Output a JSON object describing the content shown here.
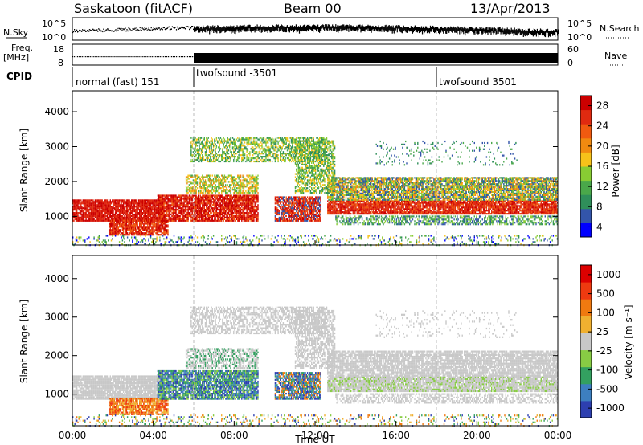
{
  "header": {
    "station": "Saskatoon (fitACF)",
    "beam": "Beam 00",
    "date": "13/Apr/2013"
  },
  "params": {
    "nsky_label": "N.Sky",
    "nsearch_label": "N.Search",
    "nsky_ticks": [
      "10^5",
      "10^0"
    ],
    "nsearch_ticks": [
      "10^5",
      "10^0"
    ],
    "freq_label": "Freq.",
    "freq_unit": "[MHz]",
    "freq_ticks": [
      "18",
      "8"
    ],
    "nave_label": "Nave",
    "nave_ticks": [
      "60",
      "0"
    ],
    "cpid_label": "CPID",
    "cpid_segments": [
      {
        "label": "normal (fast) 151",
        "start_hour": 0
      },
      {
        "label": "twofsound -3501",
        "start_hour": 6
      },
      {
        "label": "twofsound 3501",
        "start_hour": 18
      }
    ]
  },
  "chart_data": [
    {
      "type": "heatmap",
      "title": "",
      "xlabel": "",
      "ylabel": "Slant Range [km]",
      "xlim": [
        0,
        24
      ],
      "ylim": [
        180,
        4600
      ],
      "yticks": [
        1000,
        2000,
        3000,
        4000
      ],
      "colorbar": {
        "label": "Power [dB]",
        "ticks": [
          "28",
          "24",
          "20",
          "16",
          "12",
          "8",
          "4"
        ],
        "colors": [
          "#0000ff",
          "#3355aa",
          "#2f8f5a",
          "#4aa84a",
          "#88cc33",
          "#f6c21a",
          "#f08a10",
          "#f05a10",
          "#e02a10",
          "#cc0000"
        ]
      }
    },
    {
      "type": "heatmap",
      "title": "",
      "xlabel": "Time UT",
      "ylabel": "Slant Range [km]",
      "xlim": [
        0,
        24
      ],
      "ylim": [
        180,
        4600
      ],
      "yticks": [
        1000,
        2000,
        3000,
        4000
      ],
      "xticks": [
        "00:00",
        "04:00",
        "08:00",
        "12:00",
        "16:00",
        "20:00",
        "00:00"
      ],
      "colorbar": {
        "label": "Velocity [m s⁻¹]",
        "ticks": [
          "1000",
          "500",
          "100",
          "25",
          "-25",
          "-100",
          "-500",
          "-1000"
        ],
        "colors": [
          "#2d3fb0",
          "#3d7fc0",
          "#33a060",
          "#88cc44",
          "#c8c8c8",
          "#f0b030",
          "#f07a10",
          "#ee3a10",
          "#dd0000"
        ]
      }
    }
  ]
}
